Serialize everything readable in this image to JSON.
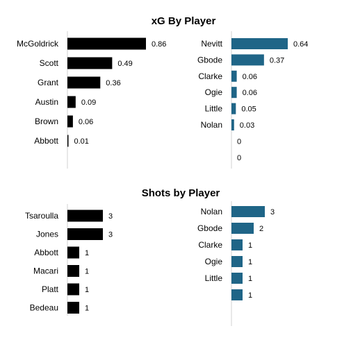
{
  "chart_data": [
    {
      "type": "bar",
      "orientation": "horizontal",
      "title": "xG By Player",
      "categories": [
        "McGoldrick",
        "Scott",
        "Grant",
        "Austin",
        "Brown",
        "Abbott"
      ],
      "values": [
        0.86,
        0.49,
        0.36,
        0.09,
        0.06,
        0.01
      ],
      "data_labels": [
        "0.86",
        "0.49",
        "0.36",
        "0.09",
        "0.06",
        "0.01"
      ],
      "color": "#000000",
      "xlim": [
        0,
        0.86
      ]
    },
    {
      "type": "bar",
      "orientation": "horizontal",
      "categories": [
        "Nevitt",
        "Gbode",
        "Clarke",
        "Ogie",
        "Little",
        "Nolan",
        "",
        ""
      ],
      "values": [
        0.64,
        0.37,
        0.06,
        0.06,
        0.05,
        0.03,
        0,
        0
      ],
      "data_labels": [
        "0.64",
        "0.37",
        "0.06",
        "0.06",
        "0.05",
        "0.03",
        "0",
        "0"
      ],
      "color": "#1f6587",
      "xlim": [
        0,
        0.64
      ]
    },
    {
      "type": "bar",
      "orientation": "horizontal",
      "title": "Shots by Player",
      "categories": [
        "Tsaroulla",
        "Jones",
        "Abbott",
        "Macari",
        "Platt",
        "Bedeau"
      ],
      "values": [
        3,
        3,
        1,
        1,
        1,
        1
      ],
      "data_labels": [
        "3",
        "3",
        "1",
        "1",
        "1",
        "1"
      ],
      "color": "#000000",
      "xlim": [
        0,
        3
      ]
    },
    {
      "type": "bar",
      "orientation": "horizontal",
      "categories": [
        "Nolan",
        "Gbode",
        "Clarke",
        "Ogie",
        "Little",
        ""
      ],
      "values": [
        3,
        2,
        1,
        1,
        1,
        1
      ],
      "data_labels": [
        "3",
        "2",
        "1",
        "1",
        "1",
        "1"
      ],
      "color": "#1f6587",
      "xlim": [
        0,
        3
      ]
    }
  ]
}
